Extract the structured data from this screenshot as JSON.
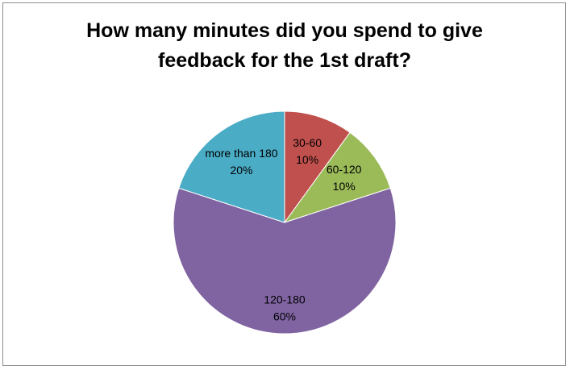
{
  "chart_data": {
    "type": "pie",
    "title": "How many minutes did you spend to give feedback for the 1st draft?",
    "categories": [
      "30-60",
      "60-120",
      "120-180",
      "more than 180"
    ],
    "values": [
      10,
      10,
      60,
      20
    ],
    "value_labels": [
      "10%",
      "10%",
      "60%",
      "20%"
    ],
    "colors": [
      "#C0504D",
      "#9BBB59",
      "#8064A2",
      "#4BACC6"
    ]
  }
}
